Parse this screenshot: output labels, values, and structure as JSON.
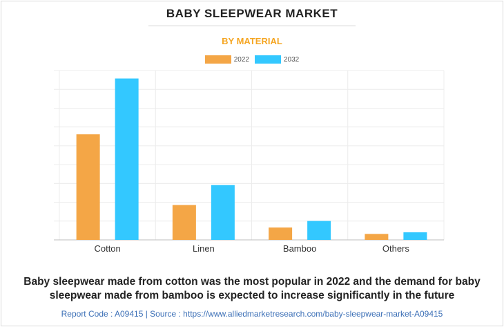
{
  "header": {
    "title": "BABY SLEEPWEAR MARKET",
    "subtitle": "BY MATERIAL"
  },
  "colors": {
    "2022": "#f4a646",
    "2032": "#33c8ff",
    "accent": "#f5a623"
  },
  "chart_data": {
    "type": "bar",
    "categories": [
      "Cotton",
      "Linen",
      "Bamboo",
      "Others"
    ],
    "series": [
      {
        "name": "2022",
        "values": [
          530,
          175,
          62,
          30
        ]
      },
      {
        "name": "2032",
        "values": [
          810,
          275,
          95,
          38
        ]
      }
    ],
    "ylim": [
      0,
      850
    ],
    "grid": true,
    "legend": "top-center",
    "xlabel": "",
    "ylabel": ""
  },
  "caption": "Baby sleepwear made from cotton was the most popular in 2022 and the demand for baby sleepwear made from bamboo is expected to increase significantly in the future",
  "footer": "Report Code : A09415  |  Source : https://www.alliedmarketresearch.com/baby-sleepwear-market-A09415"
}
